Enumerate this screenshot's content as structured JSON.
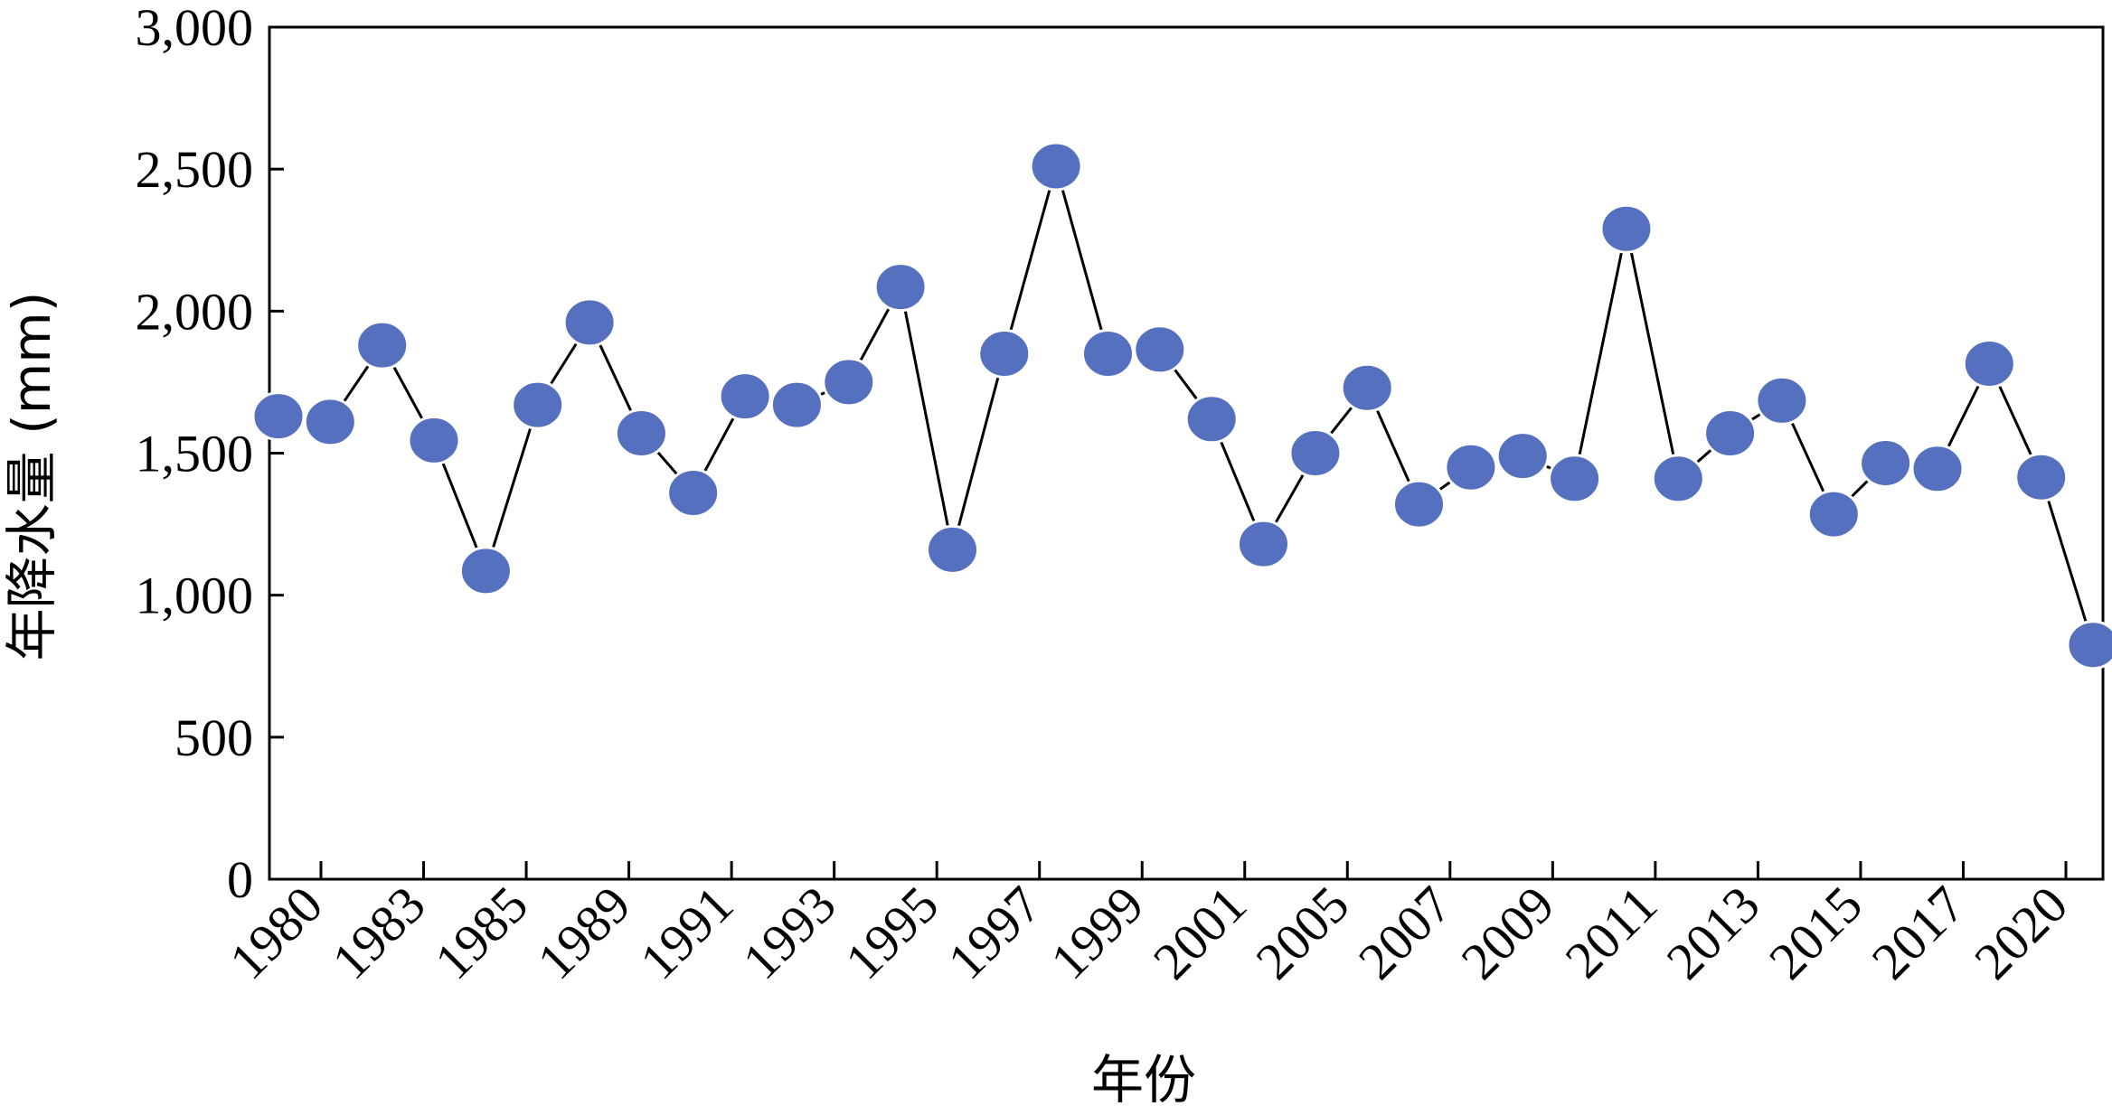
{
  "chart_data": {
    "type": "line",
    "xlabel": "年份",
    "ylabel": "年降水量 (mm)",
    "ylim": [
      0,
      3000
    ],
    "yticks": [
      "0",
      "500",
      "1,000",
      "1,500",
      "2,000",
      "2,500",
      "3,000"
    ],
    "ytick_values": [
      0,
      500,
      1000,
      1500,
      2000,
      2500,
      3000
    ],
    "x_tick_labels": [
      "1980",
      "1983",
      "1985",
      "1989",
      "1991",
      "1993",
      "1995",
      "1997",
      "1999",
      "2001",
      "2005",
      "2007",
      "2009",
      "2011",
      "2013",
      "2015",
      "2017",
      "2020"
    ],
    "grid": false,
    "legend": "none",
    "marker_color": "#5470BE",
    "line_color": "#000000",
    "series": [
      {
        "values": [
          1630,
          1610,
          1880,
          1545,
          1085,
          1670,
          1960,
          1570,
          1360,
          1700,
          1670,
          1750,
          2085,
          1160,
          1850,
          2510,
          1850,
          1865,
          1620,
          1180,
          1500,
          1730,
          1320,
          1450,
          1490,
          1410,
          2290,
          1410,
          1570,
          1685,
          1285,
          1465,
          1445,
          1815,
          1415,
          825
        ]
      }
    ]
  }
}
